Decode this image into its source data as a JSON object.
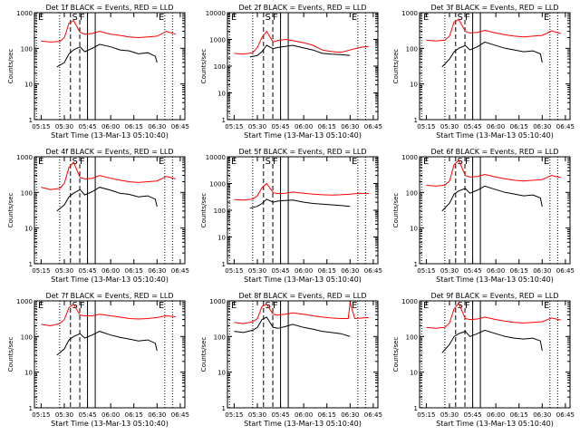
{
  "figure": {
    "panels_label": "RHESSI detector count rates",
    "colors": {
      "events": "#000000",
      "lld": "#ff0000",
      "axes": "#000000"
    }
  },
  "chart_data": [
    {
      "type": "line",
      "title": "Det 1f BLACK = Events, RED = LLD",
      "xlabel": "Start Time (13-Mar-13 05:10:40)",
      "ylabel": "Counts/sec",
      "xticks": [
        "05:15",
        "05:30",
        "05:45",
        "06:00",
        "06:15",
        "06:30",
        "06:45"
      ],
      "yticks": [
        "1",
        "10",
        "100",
        "1000"
      ],
      "ylim": [
        1,
        1000
      ],
      "yscale": "log",
      "markers": [
        "E",
        "S",
        "F",
        "E"
      ],
      "series": [
        {
          "name": "Events",
          "color": "#000000",
          "x": [
            5.42,
            5.5,
            5.55,
            5.6,
            5.67,
            5.72,
            5.8,
            5.88,
            6.0,
            6.1,
            6.2,
            6.3,
            6.4,
            6.48,
            6.5
          ],
          "y": [
            30,
            40,
            70,
            90,
            110,
            80,
            100,
            130,
            110,
            90,
            85,
            70,
            75,
            60,
            40
          ]
        },
        {
          "name": "LLD",
          "color": "#ff0000",
          "x": [
            5.25,
            5.35,
            5.45,
            5.5,
            5.55,
            5.6,
            5.67,
            5.72,
            5.8,
            5.88,
            6.0,
            6.1,
            6.2,
            6.3,
            6.4,
            6.5,
            6.6,
            6.7
          ],
          "y": [
            160,
            150,
            155,
            200,
            500,
            600,
            280,
            250,
            260,
            300,
            250,
            230,
            210,
            200,
            210,
            220,
            300,
            250
          ]
        }
      ]
    },
    {
      "type": "line",
      "title": "Det 2f BLACK = Events, RED = LLD",
      "xlabel": "Start Time (13-Mar-13 05:10:40)",
      "ylabel": "Counts/sec",
      "xticks": [
        "05:15",
        "05:30",
        "05:45",
        "06:00",
        "06:15",
        "06:30",
        "06:45"
      ],
      "yticks": [
        "1",
        "10",
        "100",
        "1000",
        "10000"
      ],
      "ylim": [
        1,
        10000
      ],
      "yscale": "log",
      "markers": [
        "E",
        "S",
        "F",
        "E"
      ],
      "series": [
        {
          "name": "Events",
          "color": "#000000",
          "x": [
            5.42,
            5.5,
            5.55,
            5.6,
            5.67,
            5.72,
            5.8,
            5.88,
            6.0,
            6.1,
            6.2,
            6.3,
            6.4,
            6.5
          ],
          "y": [
            220,
            250,
            350,
            600,
            450,
            500,
            550,
            600,
            480,
            400,
            300,
            280,
            270,
            250
          ]
        },
        {
          "name": "LLD",
          "color": "#ff0000",
          "x": [
            5.25,
            5.35,
            5.45,
            5.5,
            5.55,
            5.6,
            5.67,
            5.72,
            5.8,
            5.88,
            6.0,
            6.1,
            6.2,
            6.3,
            6.4,
            6.5,
            6.6,
            6.7
          ],
          "y": [
            300,
            280,
            320,
            500,
            1200,
            2000,
            800,
            900,
            1000,
            900,
            750,
            600,
            400,
            350,
            330,
            400,
            500,
            550
          ]
        }
      ]
    },
    {
      "type": "line",
      "title": "Det 3f BLACK = Events, RED = LLD",
      "xlabel": "Start Time (13-Mar-13 05:10:40)",
      "ylabel": "Counts/sec",
      "xticks": [
        "05:15",
        "05:30",
        "05:45",
        "06:00",
        "06:15",
        "06:30",
        "06:45"
      ],
      "yticks": [
        "1",
        "10",
        "100",
        "1000"
      ],
      "ylim": [
        1,
        1000
      ],
      "yscale": "log",
      "markers": [
        "E",
        "S",
        "F",
        "E"
      ],
      "series": [
        {
          "name": "Events",
          "color": "#000000",
          "x": [
            5.42,
            5.5,
            5.55,
            5.6,
            5.67,
            5.72,
            5.8,
            5.88,
            6.0,
            6.1,
            6.2,
            6.3,
            6.4,
            6.48,
            6.5
          ],
          "y": [
            30,
            50,
            80,
            100,
            120,
            90,
            110,
            150,
            120,
            100,
            90,
            80,
            85,
            70,
            40
          ]
        },
        {
          "name": "LLD",
          "color": "#ff0000",
          "x": [
            5.25,
            5.35,
            5.45,
            5.5,
            5.55,
            5.6,
            5.67,
            5.72,
            5.8,
            5.88,
            6.0,
            6.1,
            6.2,
            6.3,
            6.4,
            6.5,
            6.6,
            6.7
          ],
          "y": [
            170,
            160,
            170,
            220,
            550,
            650,
            300,
            270,
            280,
            320,
            270,
            240,
            220,
            210,
            220,
            230,
            310,
            260
          ]
        }
      ]
    },
    {
      "type": "line",
      "title": "Det 4f BLACK = Events, RED = LLD",
      "xlabel": "Start Time (13-Mar-13 05:10:40)",
      "ylabel": "Counts/sec",
      "xticks": [
        "05:15",
        "05:30",
        "05:45",
        "06:00",
        "06:15",
        "06:30",
        "06:45"
      ],
      "yticks": [
        "1",
        "10",
        "100",
        "1000"
      ],
      "ylim": [
        1,
        1000
      ],
      "yscale": "log",
      "markers": [
        "E",
        "S",
        "F",
        "E"
      ],
      "series": [
        {
          "name": "Events",
          "color": "#000000",
          "x": [
            5.42,
            5.5,
            5.55,
            5.6,
            5.67,
            5.72,
            5.8,
            5.88,
            6.0,
            6.1,
            6.2,
            6.3,
            6.4,
            6.48,
            6.5
          ],
          "y": [
            30,
            45,
            75,
            95,
            120,
            85,
            105,
            140,
            115,
            95,
            88,
            75,
            80,
            65,
            40
          ]
        },
        {
          "name": "LLD",
          "color": "#ff0000",
          "x": [
            5.25,
            5.35,
            5.45,
            5.5,
            5.55,
            5.6,
            5.67,
            5.72,
            5.8,
            5.88,
            6.0,
            6.1,
            6.2,
            6.3,
            6.4,
            6.5,
            6.6,
            6.7
          ],
          "y": [
            140,
            120,
            130,
            180,
            500,
            700,
            260,
            240,
            250,
            300,
            250,
            220,
            200,
            190,
            200,
            210,
            280,
            240
          ]
        }
      ]
    },
    {
      "type": "line",
      "title": "Det 5f BLACK = Events, RED = LLD",
      "xlabel": "Start Time (13-Mar-13 05:10:40)",
      "ylabel": "Counts/sec",
      "xticks": [
        "05:15",
        "05:30",
        "05:45",
        "06:00",
        "06:15",
        "06:30",
        "06:45"
      ],
      "yticks": [
        "1",
        "10",
        "100",
        "1000",
        "10000"
      ],
      "ylim": [
        1,
        10000
      ],
      "yscale": "log",
      "markers": [
        "E",
        "S",
        "F",
        "E"
      ],
      "series": [
        {
          "name": "Events",
          "color": "#000000",
          "x": [
            5.42,
            5.5,
            5.55,
            5.6,
            5.67,
            5.72,
            5.8,
            5.88,
            6.0,
            6.1,
            6.2,
            6.3,
            6.4,
            6.5
          ],
          "y": [
            120,
            140,
            180,
            260,
            200,
            220,
            230,
            240,
            200,
            180,
            170,
            160,
            150,
            140
          ]
        },
        {
          "name": "LLD",
          "color": "#ff0000",
          "x": [
            5.25,
            5.35,
            5.45,
            5.5,
            5.55,
            5.6,
            5.67,
            5.72,
            5.8,
            5.88,
            6.0,
            6.1,
            6.2,
            6.3,
            6.4,
            6.5,
            6.6,
            6.7
          ],
          "y": [
            250,
            240,
            260,
            350,
            700,
            1000,
            450,
            420,
            430,
            480,
            430,
            400,
            380,
            370,
            380,
            400,
            430,
            420
          ]
        }
      ]
    },
    {
      "type": "line",
      "title": "Det 6f BLACK = Events, RED = LLD",
      "xlabel": "Start Time (13-Mar-13 05:10:40)",
      "ylabel": "Counts/sec",
      "xticks": [
        "05:15",
        "05:30",
        "05:45",
        "06:00",
        "06:15",
        "06:30",
        "06:45"
      ],
      "yticks": [
        "1",
        "10",
        "100",
        "1000"
      ],
      "ylim": [
        1,
        1000
      ],
      "yscale": "log",
      "markers": [
        "E",
        "S",
        "F",
        "E"
      ],
      "series": [
        {
          "name": "Events",
          "color": "#000000",
          "x": [
            5.42,
            5.5,
            5.55,
            5.6,
            5.67,
            5.72,
            5.8,
            5.88,
            6.0,
            6.1,
            6.2,
            6.3,
            6.4,
            6.48,
            6.5
          ],
          "y": [
            30,
            50,
            90,
            110,
            130,
            95,
            115,
            150,
            120,
            100,
            90,
            80,
            85,
            70,
            40
          ]
        },
        {
          "name": "LLD",
          "color": "#ff0000",
          "x": [
            5.25,
            5.35,
            5.45,
            5.5,
            5.55,
            5.6,
            5.67,
            5.72,
            5.8,
            5.88,
            6.0,
            6.1,
            6.2,
            6.3,
            6.4,
            6.5,
            6.6,
            6.7
          ],
          "y": [
            160,
            150,
            160,
            210,
            600,
            800,
            300,
            270,
            280,
            320,
            270,
            240,
            220,
            210,
            220,
            230,
            300,
            260
          ]
        }
      ]
    },
    {
      "type": "line",
      "title": "Det 7f BLACK = Events, RED = LLD",
      "xlabel": "Start Time (13-Mar-13 05:10:40)",
      "ylabel": "Counts/sec",
      "xticks": [
        "05:15",
        "05:30",
        "05:45",
        "06:00",
        "06:15",
        "06:30",
        "06:45"
      ],
      "yticks": [
        "1",
        "10",
        "100",
        "1000"
      ],
      "ylim": [
        1,
        1000
      ],
      "yscale": "log",
      "markers": [
        "E",
        "S",
        "F",
        "E"
      ],
      "series": [
        {
          "name": "Events",
          "color": "#000000",
          "x": [
            5.42,
            5.5,
            5.55,
            5.6,
            5.67,
            5.72,
            5.8,
            5.88,
            6.0,
            6.1,
            6.2,
            6.3,
            6.4,
            6.48,
            6.5
          ],
          "y": [
            30,
            45,
            80,
            100,
            120,
            90,
            110,
            140,
            110,
            95,
            85,
            75,
            80,
            65,
            40
          ]
        },
        {
          "name": "LLD",
          "color": "#ff0000",
          "x": [
            5.25,
            5.35,
            5.45,
            5.5,
            5.55,
            5.6,
            5.67,
            5.72,
            5.8,
            5.88,
            6.0,
            6.1,
            6.2,
            6.3,
            6.4,
            6.5,
            6.6,
            6.7
          ],
          "y": [
            220,
            200,
            230,
            300,
            650,
            800,
            400,
            380,
            380,
            420,
            380,
            350,
            320,
            310,
            320,
            340,
            380,
            360
          ]
        }
      ]
    },
    {
      "type": "line",
      "title": "Det 8f BLACK = Events, RED = LLD",
      "xlabel": "Start Time (13-Mar-13 05:10:40)",
      "ylabel": "Counts/sec",
      "xticks": [
        "05:15",
        "05:30",
        "05:45",
        "06:00",
        "06:15",
        "06:30",
        "06:45"
      ],
      "yticks": [
        "1",
        "10",
        "100",
        "1000"
      ],
      "ylim": [
        1,
        1000
      ],
      "yscale": "log",
      "markers": [
        "E",
        "S",
        "F",
        "E"
      ],
      "series": [
        {
          "name": "Events",
          "color": "#000000",
          "x": [
            5.25,
            5.35,
            5.45,
            5.5,
            5.55,
            5.6,
            5.67,
            5.72,
            5.8,
            5.88,
            6.0,
            6.1,
            6.2,
            6.3,
            6.4,
            6.5
          ],
          "y": [
            140,
            130,
            150,
            180,
            300,
            350,
            180,
            170,
            190,
            220,
            180,
            160,
            140,
            130,
            120,
            100
          ]
        },
        {
          "name": "LLD",
          "color": "#ff0000",
          "x": [
            5.25,
            5.35,
            5.45,
            5.5,
            5.55,
            5.6,
            5.67,
            5.72,
            5.8,
            5.88,
            6.0,
            6.1,
            6.2,
            6.3,
            6.4,
            6.48,
            6.5,
            6.55,
            6.7
          ],
          "y": [
            250,
            230,
            260,
            320,
            700,
            800,
            420,
            400,
            420,
            460,
            420,
            380,
            350,
            330,
            320,
            320,
            900,
            320,
            340
          ]
        }
      ]
    },
    {
      "type": "line",
      "title": "Det 9f BLACK = Events, RED = LLD",
      "xlabel": "Start Time (13-Mar-13 05:10:40)",
      "ylabel": "Counts/sec",
      "xticks": [
        "05:15",
        "05:30",
        "05:45",
        "06:00",
        "06:15",
        "06:30",
        "06:45"
      ],
      "yticks": [
        "1",
        "10",
        "100",
        "1000"
      ],
      "ylim": [
        1,
        1000
      ],
      "yscale": "log",
      "markers": [
        "E",
        "S",
        "F",
        "E"
      ],
      "series": [
        {
          "name": "Events",
          "color": "#000000",
          "x": [
            5.42,
            5.5,
            5.55,
            5.6,
            5.67,
            5.72,
            5.8,
            5.88,
            6.0,
            6.1,
            6.2,
            6.3,
            6.4,
            6.48,
            6.5
          ],
          "y": [
            35,
            60,
            100,
            120,
            140,
            100,
            120,
            150,
            120,
            100,
            90,
            85,
            90,
            75,
            40
          ]
        },
        {
          "name": "LLD",
          "color": "#ff0000",
          "x": [
            5.25,
            5.35,
            5.45,
            5.5,
            5.55,
            5.6,
            5.67,
            5.72,
            5.8,
            5.88,
            6.0,
            6.1,
            6.2,
            6.3,
            6.4,
            6.5,
            6.6,
            6.7
          ],
          "y": [
            180,
            170,
            180,
            240,
            600,
            850,
            320,
            300,
            310,
            350,
            300,
            270,
            250,
            240,
            250,
            260,
            330,
            290
          ]
        }
      ]
    }
  ]
}
